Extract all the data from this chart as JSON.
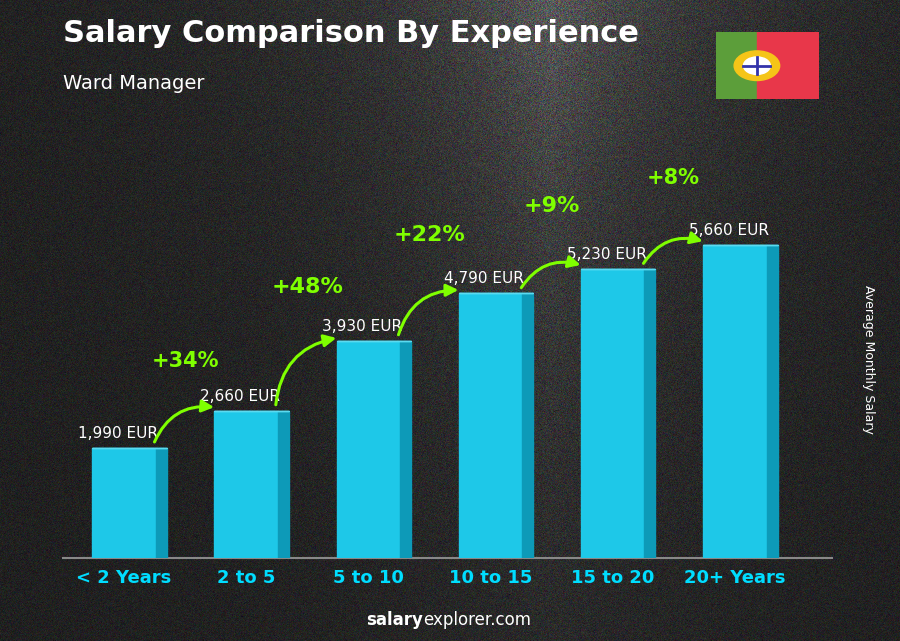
{
  "title": "Salary Comparison By Experience",
  "subtitle": "Ward Manager",
  "categories": [
    "< 2 Years",
    "2 to 5",
    "5 to 10",
    "10 to 15",
    "15 to 20",
    "20+ Years"
  ],
  "values": [
    1990,
    2660,
    3930,
    4790,
    5230,
    5660
  ],
  "labels": [
    "1,990 EUR",
    "2,660 EUR",
    "3,930 EUR",
    "4,790 EUR",
    "5,230 EUR",
    "5,660 EUR"
  ],
  "pct_labels": [
    "+34%",
    "+48%",
    "+22%",
    "+9%",
    "+8%"
  ],
  "bar_face_color": "#1EC8E8",
  "bar_side_color": "#0D9AB8",
  "bar_top_color": "#5ADAF0",
  "bg_color": "#5a5f60",
  "title_color": "#FFFFFF",
  "label_color": "#FFFFFF",
  "pct_color": "#7FFF00",
  "xticklabel_color": "#00DDFF",
  "ylabel": "Average Monthly Salary",
  "footer_bold": "salary",
  "footer_regular": "explorer.com",
  "ylim": [
    0,
    7200
  ],
  "flag_green": "#5C9E3A",
  "flag_red": "#E8374A",
  "flag_gold": "#F5C518"
}
